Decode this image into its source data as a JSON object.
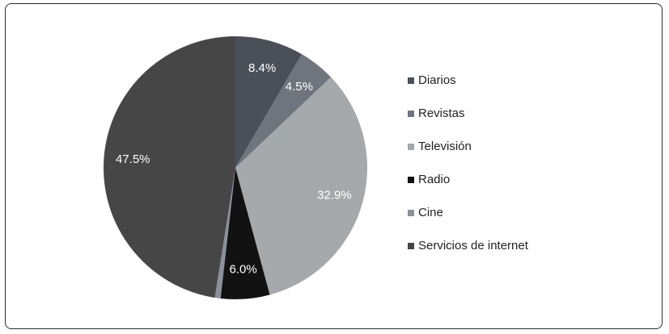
{
  "chart_data": {
    "type": "pie",
    "categories": [
      "Diarios",
      "Revistas",
      "Televisión",
      "Radio",
      "Cine",
      "Servicios de internet"
    ],
    "values": [
      8.4,
      4.5,
      32.9,
      6.0,
      0.7,
      47.5
    ],
    "value_labels": [
      "8.4%",
      "4.5%",
      "32.9%",
      "6.0%",
      null,
      "47.5%"
    ],
    "colors": [
      "#4a5058",
      "#6f757d",
      "#a6a9ac",
      "#121212",
      "#8c909a",
      "#464646"
    ],
    "legend": "right"
  }
}
